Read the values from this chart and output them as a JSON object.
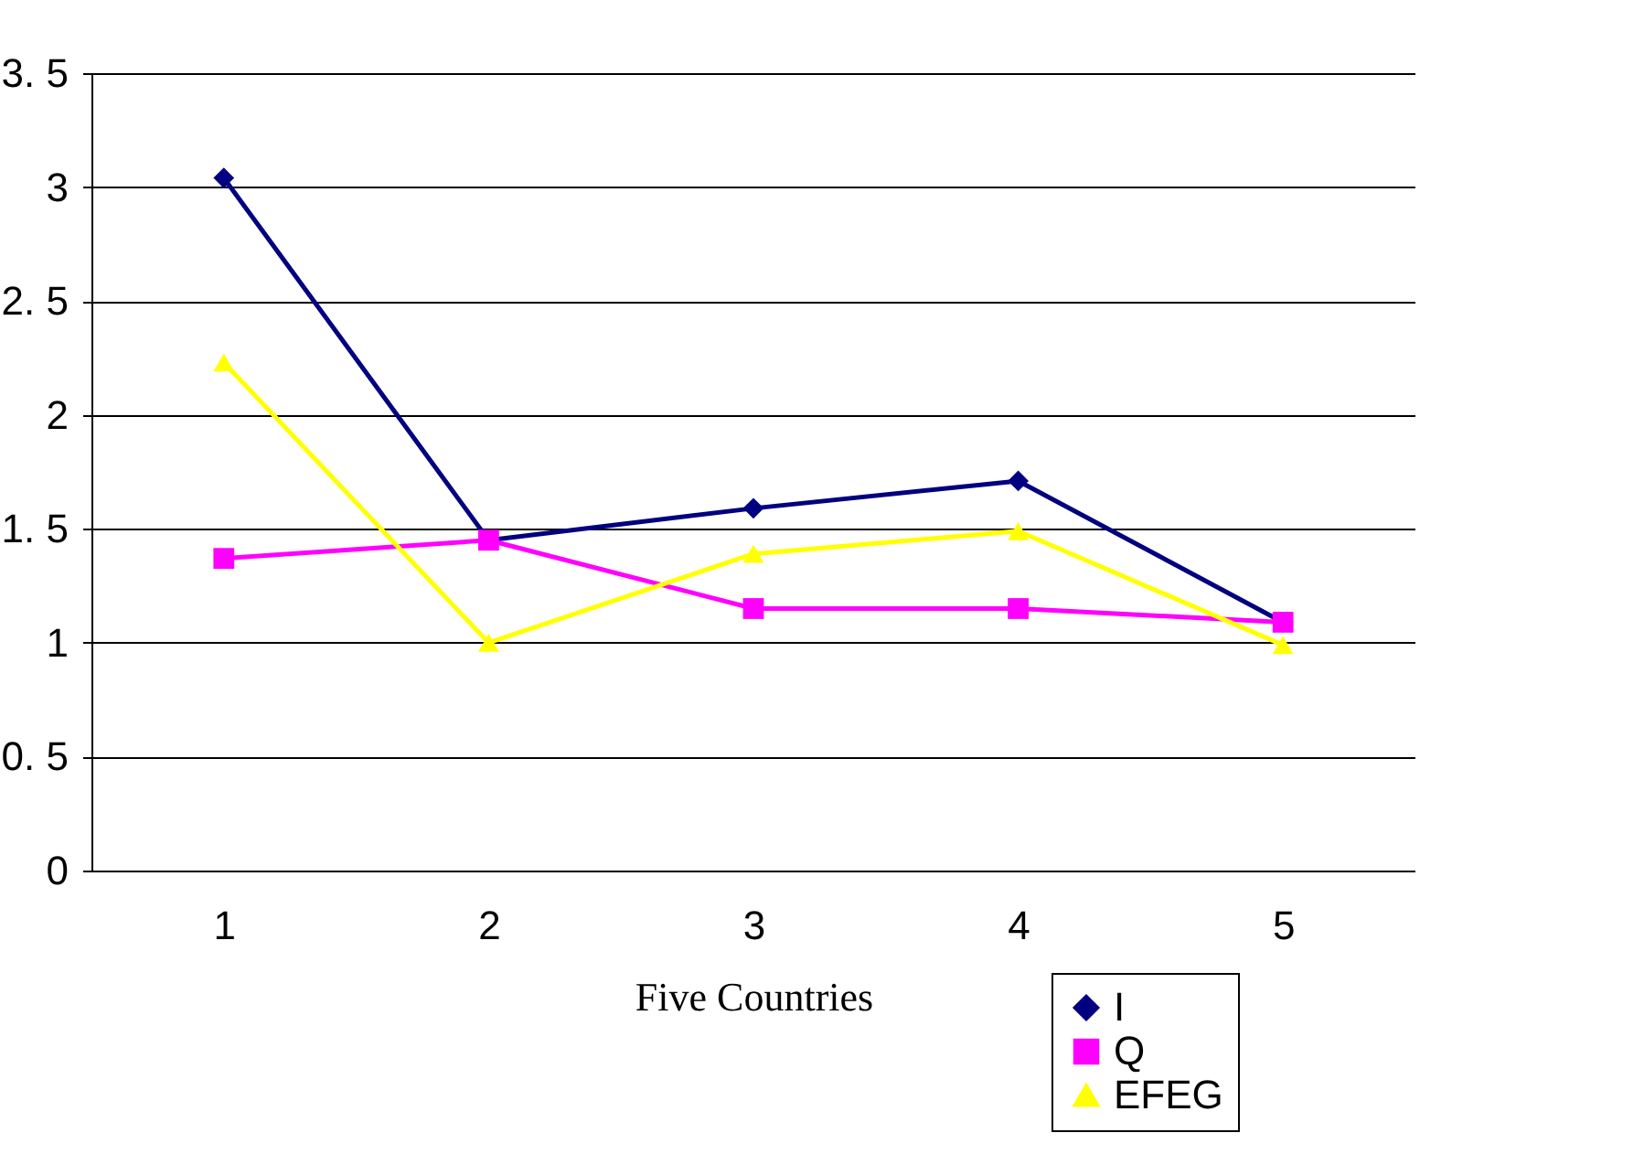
{
  "chart_data": {
    "type": "line",
    "xlabel": "Five Countries",
    "categories": [
      "1",
      "2",
      "3",
      "4",
      "5"
    ],
    "series": [
      {
        "name": "I",
        "color": "#000080",
        "marker": "diamond",
        "values": [
          3.04,
          1.45,
          1.59,
          1.71,
          1.09
        ]
      },
      {
        "name": "Q",
        "color": "#ff00ff",
        "marker": "square",
        "values": [
          1.37,
          1.45,
          1.15,
          1.15,
          1.09
        ]
      },
      {
        "name": "EFEG",
        "color": "#ffff00",
        "marker": "triangle",
        "values": [
          2.23,
          1.0,
          1.39,
          1.49,
          0.99
        ]
      }
    ],
    "ylim": [
      0,
      3.5
    ],
    "yticks": [
      0,
      {
        "value": 0.5,
        "label": "0. 5"
      },
      1,
      {
        "value": 1.5,
        "label": "1. 5"
      },
      2,
      {
        "value": 2.5,
        "label": "2. 5"
      },
      3,
      {
        "value": 3.5,
        "label": "3. 5"
      }
    ],
    "grid": "y",
    "legend": "bottom right",
    "line_style": "solid"
  }
}
